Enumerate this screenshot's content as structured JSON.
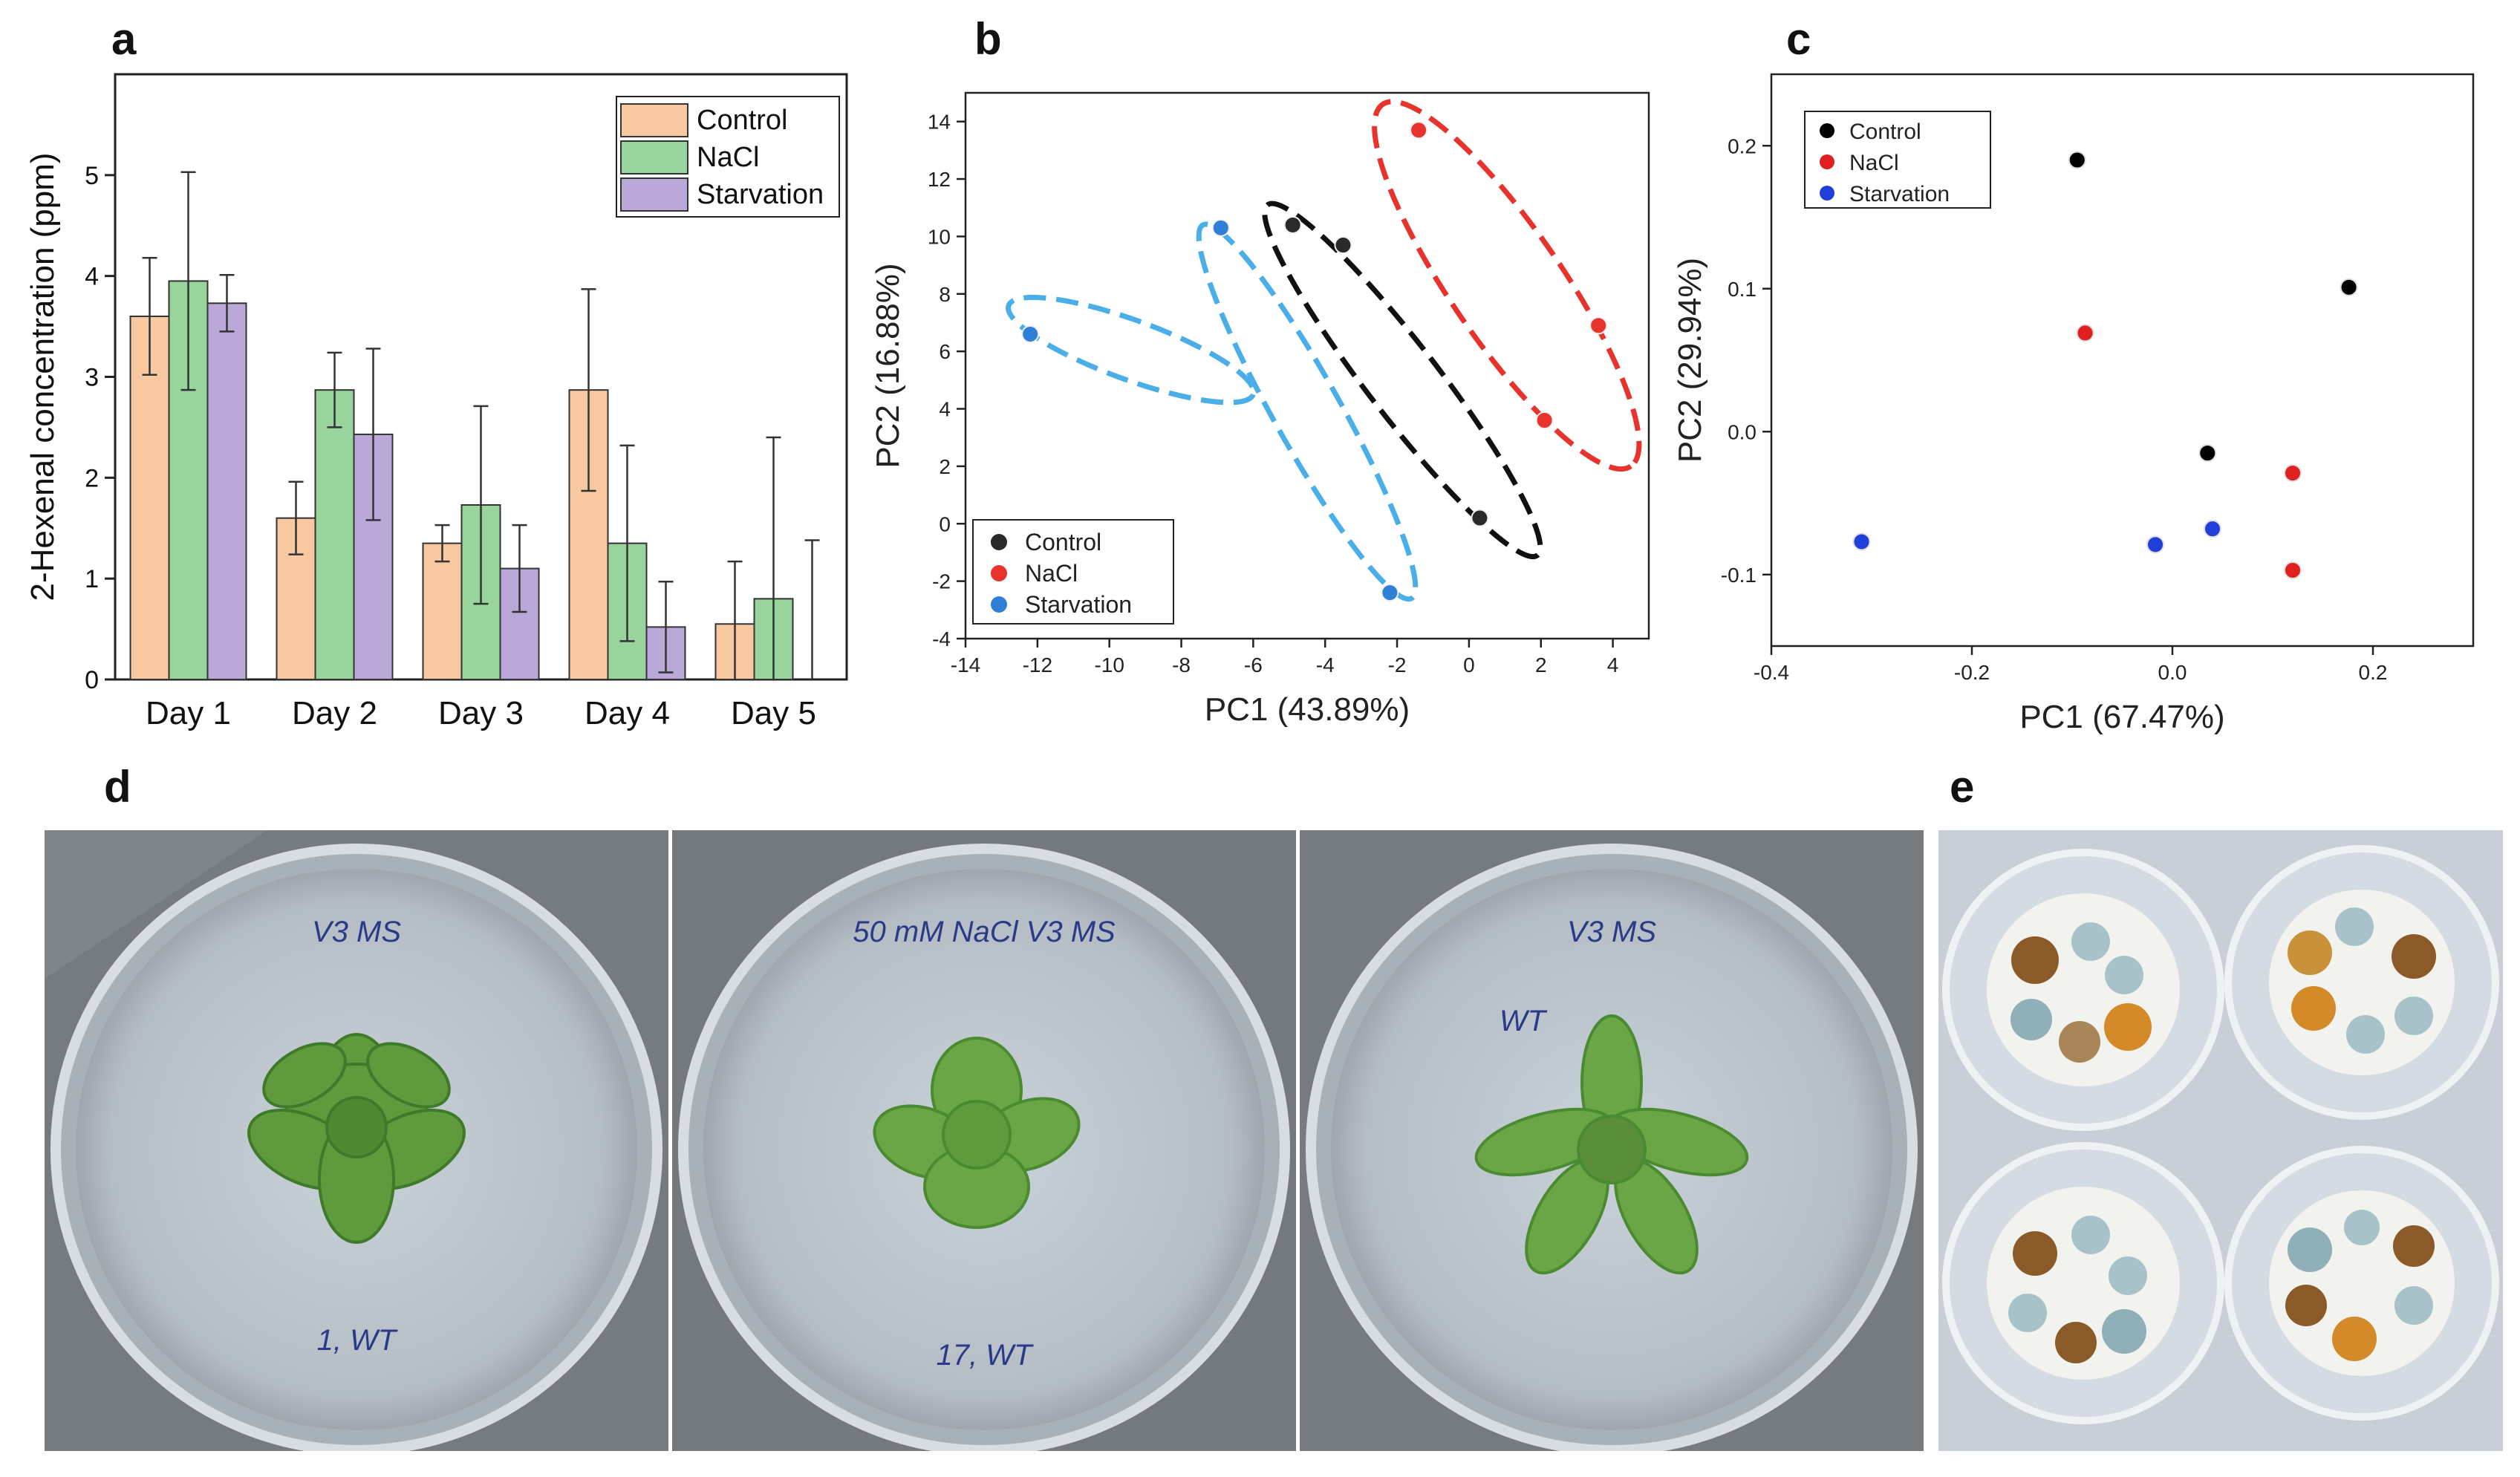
{
  "panel_letters": {
    "a": "a",
    "b": "b",
    "c": "c",
    "d": "d",
    "e": "e"
  },
  "colors": {
    "control_bar": "#f8c9a0",
    "nacl_bar": "#98d49c",
    "starvation_bar": "#b9a8d8",
    "control_point": "#2a2a2a",
    "nacl_point": "#e8322c",
    "starvation_point": "#2f7fd6",
    "control_ellipse": "#111111",
    "nacl_ellipse": "#e8322c",
    "starvation_ellipse": "#4aaee8",
    "c_control": "#000000",
    "c_nacl": "#e02020",
    "c_starvation": "#1f3fd8"
  },
  "chart_data": [
    {
      "type": "bar",
      "categories": [
        "Day 1",
        "Day 2",
        "Day 3",
        "Day 4",
        "Day 5"
      ],
      "ylabel": "2-Hexenal concentration (ppm)",
      "xlabel": "",
      "ylim": [
        0,
        6
      ],
      "yticks": [
        "0",
        "1",
        "2",
        "3",
        "4",
        "5"
      ],
      "legend_position": "top-right",
      "series": [
        {
          "name": "Control",
          "values": [
            3.6,
            1.6,
            1.35,
            2.87,
            0.55
          ],
          "errors": [
            0.58,
            0.36,
            0.18,
            1.0,
            0.62
          ]
        },
        {
          "name": "NaCl",
          "values": [
            3.95,
            2.87,
            1.73,
            1.35,
            0.8
          ],
          "errors": [
            1.08,
            0.37,
            0.98,
            0.97,
            1.6
          ]
        },
        {
          "name": "Starvation",
          "values": [
            3.73,
            2.43,
            1.1,
            0.52,
            0.0
          ],
          "errors": [
            0.28,
            0.85,
            0.43,
            0.45,
            1.38
          ]
        }
      ]
    },
    {
      "type": "scatter",
      "xlabel": "PC1 (43.89%)",
      "ylabel": "PC2 (16.88%)",
      "xlim": [
        -14,
        5
      ],
      "ylim": [
        -4,
        15
      ],
      "xticks": [
        "-14",
        "-12",
        "-10",
        "-8",
        "-6",
        "-4",
        "-2",
        "0",
        "2",
        "4"
      ],
      "yticks": [
        "-4",
        "-2",
        "0",
        "2",
        "4",
        "6",
        "8",
        "10",
        "12",
        "14"
      ],
      "legend_position": "bottom-left",
      "series": [
        {
          "name": "Control",
          "points": [
            [
              -4.9,
              10.4
            ],
            [
              -3.5,
              9.7
            ],
            [
              0.3,
              0.2
            ]
          ]
        },
        {
          "name": "NaCl",
          "points": [
            [
              -1.4,
              13.7
            ],
            [
              3.6,
              6.9
            ],
            [
              2.1,
              3.6
            ]
          ]
        },
        {
          "name": "Starvation",
          "points": [
            [
              -12.2,
              6.6
            ],
            [
              -6.9,
              10.3
            ],
            [
              -2.2,
              -2.4
            ]
          ]
        }
      ]
    },
    {
      "type": "scatter",
      "xlabel": "PC1 (67.47%)",
      "ylabel": "PC2 (29.94%)",
      "xlim": [
        -0.4,
        0.3
      ],
      "ylim": [
        -0.15,
        0.25
      ],
      "xticks": [
        "-0.4",
        "-0.2",
        "0.0",
        "0.2"
      ],
      "yticks": [
        "-0.1",
        "0.0",
        "0.1",
        "0.2"
      ],
      "legend_position": "top-left",
      "series": [
        {
          "name": "Control",
          "points": [
            [
              -0.095,
              0.19
            ],
            [
              0.176,
              0.101
            ],
            [
              0.035,
              -0.015
            ]
          ]
        },
        {
          "name": "NaCl",
          "points": [
            [
              -0.087,
              0.069
            ],
            [
              0.12,
              -0.029
            ],
            [
              0.12,
              -0.097
            ]
          ]
        },
        {
          "name": "Starvation",
          "points": [
            [
              -0.31,
              -0.077
            ],
            [
              -0.017,
              -0.079
            ],
            [
              0.04,
              -0.068
            ]
          ]
        }
      ]
    }
  ],
  "photos": {
    "d": [
      {
        "top_note": "V3 MS",
        "bottom_note": "1, WT"
      },
      {
        "top_note": "50 mM NaCl\nV3 MS",
        "bottom_note": "17, WT"
      },
      {
        "top_note": "V3 MS",
        "bottom_note": "WT"
      }
    ],
    "e": {
      "plate_count": 4
    }
  }
}
